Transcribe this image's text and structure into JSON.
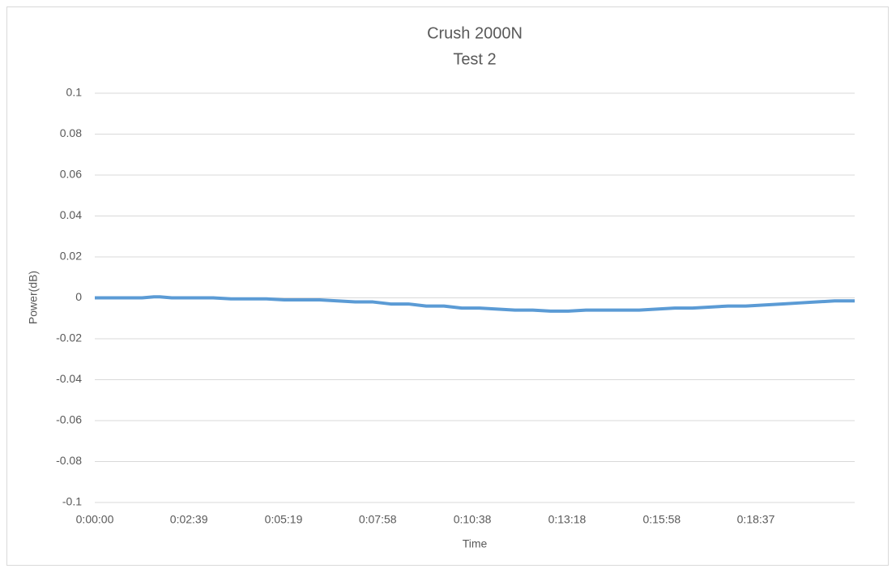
{
  "chart_data": {
    "type": "line",
    "title": "Crush 2000N",
    "subtitle": "Test 2",
    "x_label": "Time",
    "y_label": "Power(dB)",
    "x": [
      0,
      20,
      40,
      60,
      80,
      100,
      110,
      130,
      150,
      170,
      200,
      230,
      260,
      290,
      320,
      350,
      380,
      410,
      440,
      470,
      500,
      530,
      560,
      590,
      620,
      650,
      680,
      710,
      740,
      770,
      800,
      830,
      860,
      890,
      920,
      950,
      980,
      1010,
      1040,
      1070,
      1100,
      1130,
      1160,
      1190,
      1220,
      1250,
      1284
    ],
    "series": [
      {
        "name": "Power(dB)",
        "color": "#5b9bd5",
        "values": [
          0,
          0,
          0,
          0,
          0,
          0.0005,
          0.0005,
          0,
          0,
          0,
          0,
          -0.0005,
          -0.0005,
          -0.0005,
          -0.001,
          -0.001,
          -0.001,
          -0.0015,
          -0.002,
          -0.002,
          -0.003,
          -0.003,
          -0.004,
          -0.004,
          -0.005,
          -0.005,
          -0.0055,
          -0.006,
          -0.006,
          -0.0065,
          -0.0065,
          -0.006,
          -0.006,
          -0.006,
          -0.006,
          -0.0055,
          -0.005,
          -0.005,
          -0.0045,
          -0.004,
          -0.004,
          -0.0035,
          -0.003,
          -0.0025,
          -0.002,
          -0.0015,
          -0.0015
        ]
      }
    ],
    "xlim": [
      0,
      1284
    ],
    "xticks": [
      {
        "value": 0,
        "label": "0:00:00"
      },
      {
        "value": 159,
        "label": "0:02:39"
      },
      {
        "value": 319,
        "label": "0:05:19"
      },
      {
        "value": 478,
        "label": "0:07:58"
      },
      {
        "value": 638,
        "label": "0:10:38"
      },
      {
        "value": 798,
        "label": "0:13:18"
      },
      {
        "value": 958,
        "label": "0:15:58"
      },
      {
        "value": 1117,
        "label": "0:18:37"
      }
    ],
    "ylim": [
      -0.1,
      0.1
    ],
    "yticks": [
      -0.1,
      -0.08,
      -0.06,
      -0.04,
      -0.02,
      0,
      0.02,
      0.04,
      0.06,
      0.08,
      0.1
    ],
    "grid": true
  }
}
